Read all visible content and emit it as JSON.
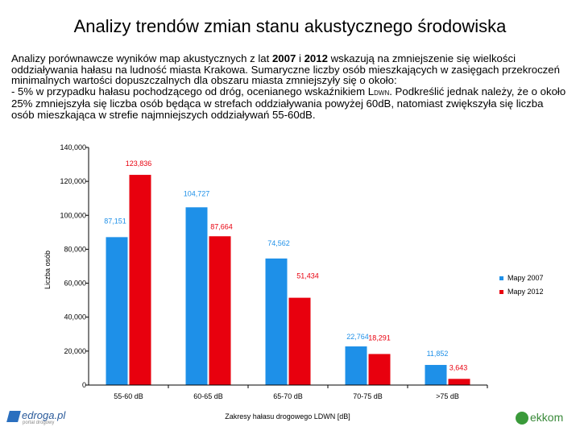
{
  "title": "Analizy trendów zmian stanu akustycznego środowiska",
  "paragraph": {
    "line1_a": "Analizy porównawcze wyników map akustycznych z lat ",
    "year1": "2007",
    "line1_b": " i ",
    "year2": "2012",
    "line1_c": " wskazują na zmniejszenie się wielkości oddziaływania hałasu na ludność miasta Krakowa. Sumaryczne liczby osób mieszkających w zasięgach przekroczeń minimalnych wartości dopuszczalnych dla obszaru miasta zmniejszyły się o około:",
    "bullet": "-  5% w przypadku hałasu pochodzącego od dróg, ocenianego wskaźnikiem L",
    "bullet_sub": "DWN",
    "bullet_rest": ". Podkreślić jednak należy, że o około 25% zmniejszyła się liczba osób będąca w strefach oddziaływania powyżej 60dB, natomiast zwiększyła się liczba osób mieszkająca w strefie najmniejszych oddziaływań 55-60dB."
  },
  "chart_data": {
    "type": "bar",
    "categories": [
      "55-60 dB",
      "60-65 dB",
      "65-70 dB",
      "70-75 dB",
      ">75 dB"
    ],
    "series": [
      {
        "name": "Mapy 2007",
        "color": "#1e90e8",
        "values": [
          87151,
          104727,
          74562,
          22764,
          11852
        ],
        "labels": [
          "87,151",
          "104,727",
          "74,562",
          "22,764",
          "11,852"
        ]
      },
      {
        "name": "Mapy 2012",
        "color": "#e8000e",
        "values": [
          123836,
          87664,
          51434,
          18291,
          3643
        ],
        "labels": [
          "123,836",
          "87,664",
          "51,434",
          "18,291",
          "3,643"
        ]
      }
    ],
    "yticks": [
      0,
      20000,
      40000,
      60000,
      80000,
      100000,
      120000,
      140000
    ],
    "ytick_labels": [
      "0",
      "20,000",
      "40,000",
      "60,000",
      "80,000",
      "100,000",
      "120,000",
      "140,000"
    ],
    "ylim": [
      0,
      140000
    ],
    "ylabel": "Liczba osób",
    "xlabel": "Zakresy hałasu drogowego LDWN [dB]",
    "legend_position": "right"
  },
  "logos": {
    "left_name": "edroga.pl",
    "left_sub": "portal drogowy",
    "right_name": "ekkom"
  }
}
